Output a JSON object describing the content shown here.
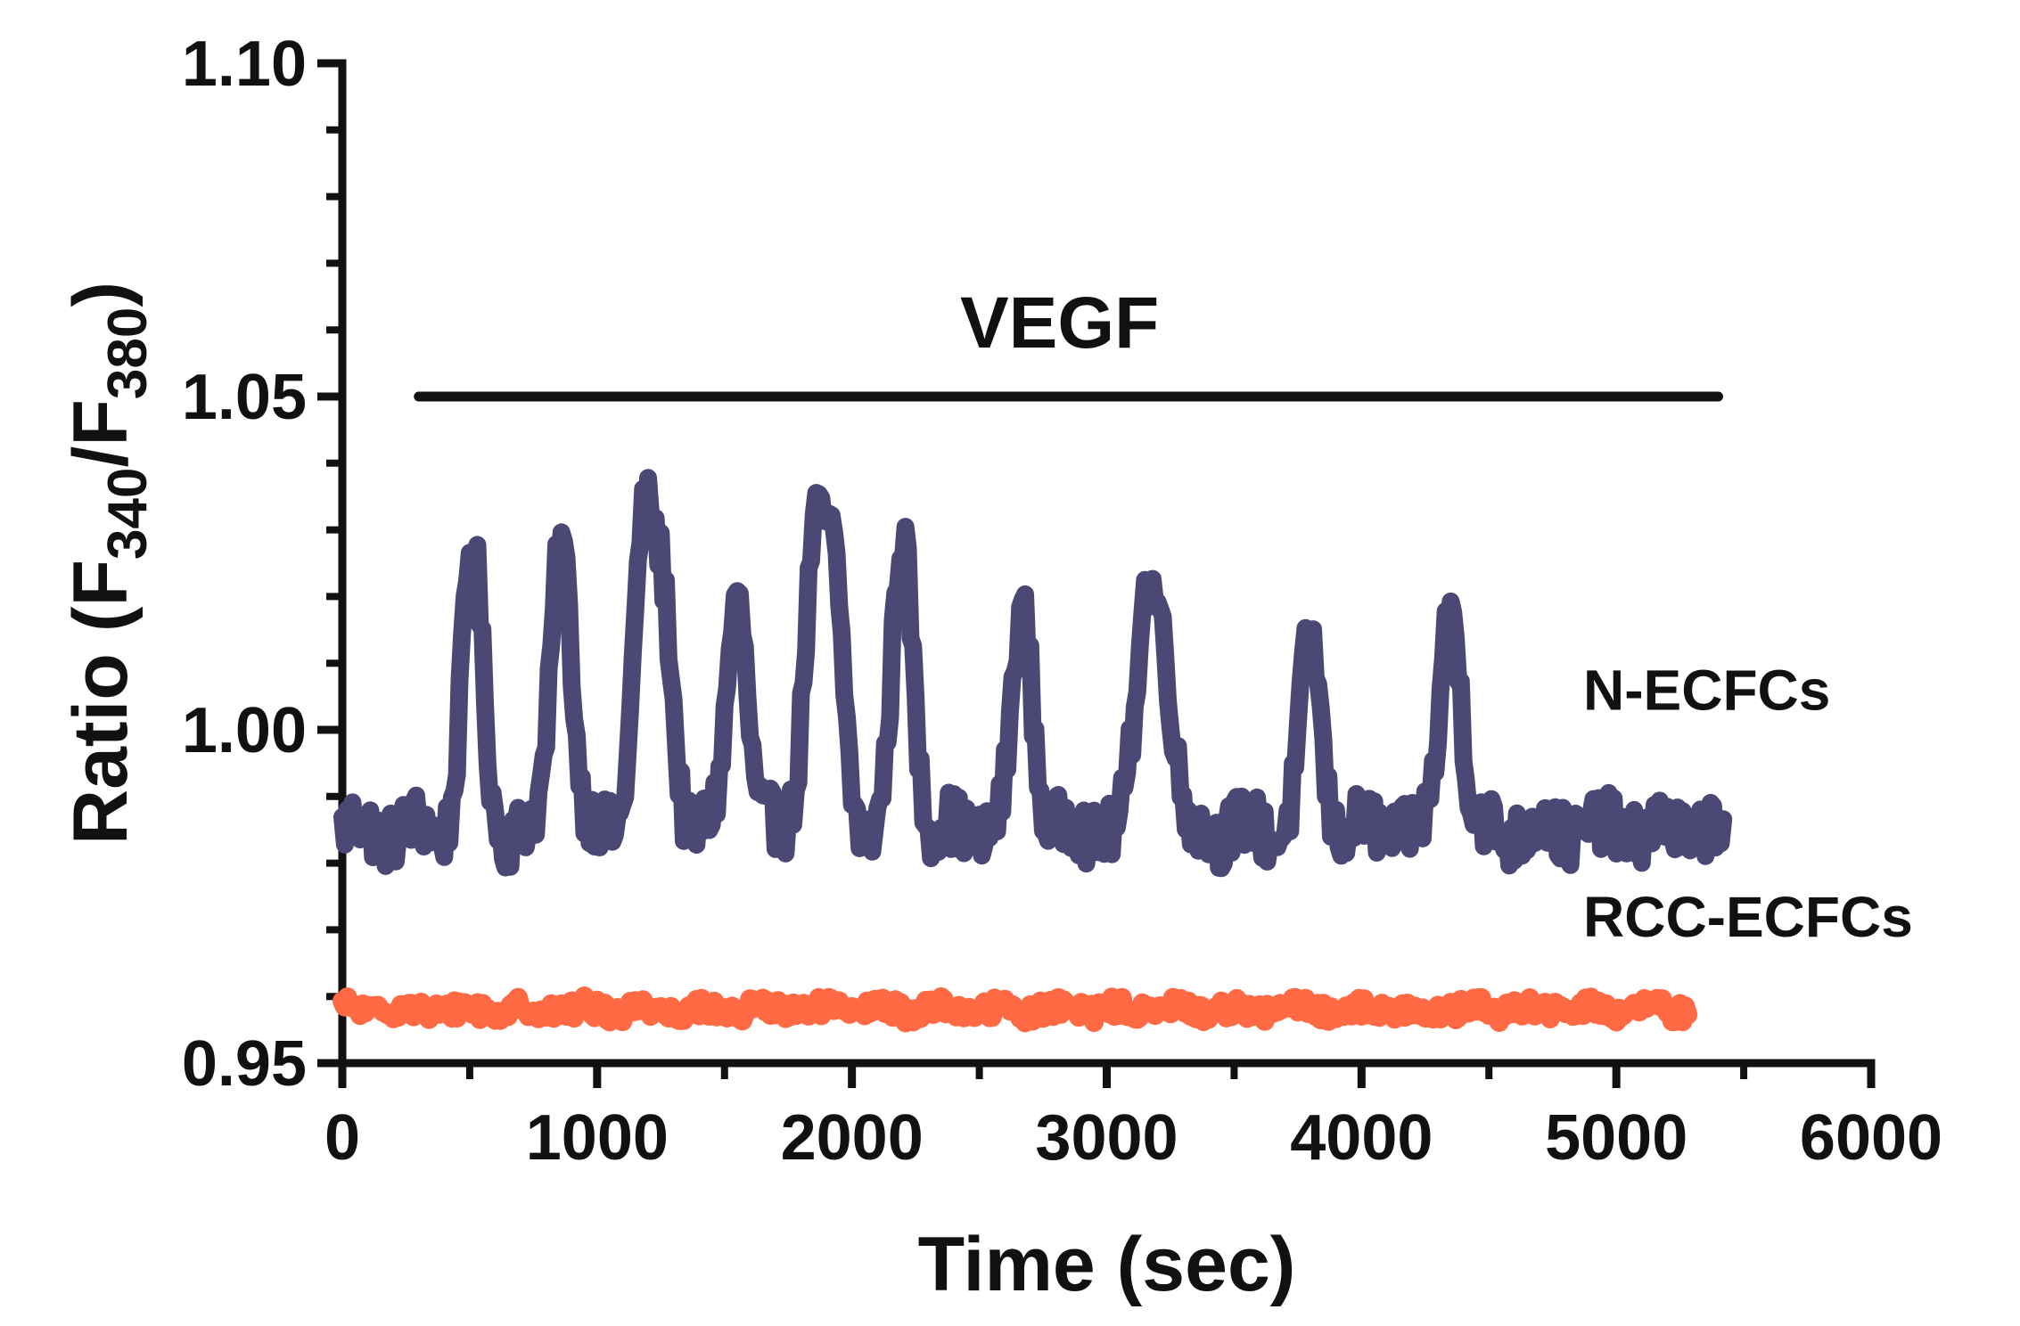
{
  "chart_data": {
    "type": "line",
    "title": "",
    "xlabel": "Time (sec)",
    "ylabel": {
      "prefix": "Ratio (F",
      "sub1": "340",
      "mid": "/F",
      "sub2": "380",
      "suffix": ")"
    },
    "xlim": [
      0,
      6000
    ],
    "ylim": [
      0.95,
      1.1
    ],
    "x_ticks": [
      0,
      1000,
      2000,
      3000,
      4000,
      5000,
      6000
    ],
    "x_tick_labels": [
      "0",
      "1000",
      "2000",
      "3000",
      "4000",
      "5000",
      "6000"
    ],
    "y_ticks": [
      0.95,
      1.0,
      1.05,
      1.1
    ],
    "y_tick_labels": [
      "0.95",
      "1.00",
      "1.05",
      "1.10"
    ],
    "annotation": {
      "label": "VEGF",
      "x_start": 300,
      "x_end": 5400,
      "y": 1.05
    },
    "series": [
      {
        "name": "N-ECFCs",
        "label": "N-ECFCs",
        "label_at": [
          4870,
          1.003
        ],
        "color": "#4b4876",
        "x_range": [
          0,
          5420
        ],
        "baseline": 0.985,
        "noise": 0.0045,
        "peaks": [
          {
            "t": 510,
            "amp": 0.042
          },
          {
            "t": 860,
            "amp": 0.045
          },
          {
            "t": 1180,
            "amp": 0.043
          },
          {
            "t": 1260,
            "amp": 0.032
          },
          {
            "t": 1550,
            "amp": 0.036
          },
          {
            "t": 1850,
            "amp": 0.041
          },
          {
            "t": 1930,
            "amp": 0.036
          },
          {
            "t": 2200,
            "amp": 0.044
          },
          {
            "t": 2670,
            "amp": 0.033
          },
          {
            "t": 3150,
            "amp": 0.031
          },
          {
            "t": 3220,
            "amp": 0.025
          },
          {
            "t": 3800,
            "amp": 0.028
          },
          {
            "t": 4350,
            "amp": 0.035
          }
        ]
      },
      {
        "name": "RCC-ECFCs",
        "label": "RCC-ECFCs",
        "label_at": [
          4870,
          0.969
        ],
        "color": "#ff6a45",
        "x_range": [
          0,
          5280
        ],
        "baseline": 0.958,
        "noise": 0.0015,
        "peaks": []
      }
    ]
  }
}
